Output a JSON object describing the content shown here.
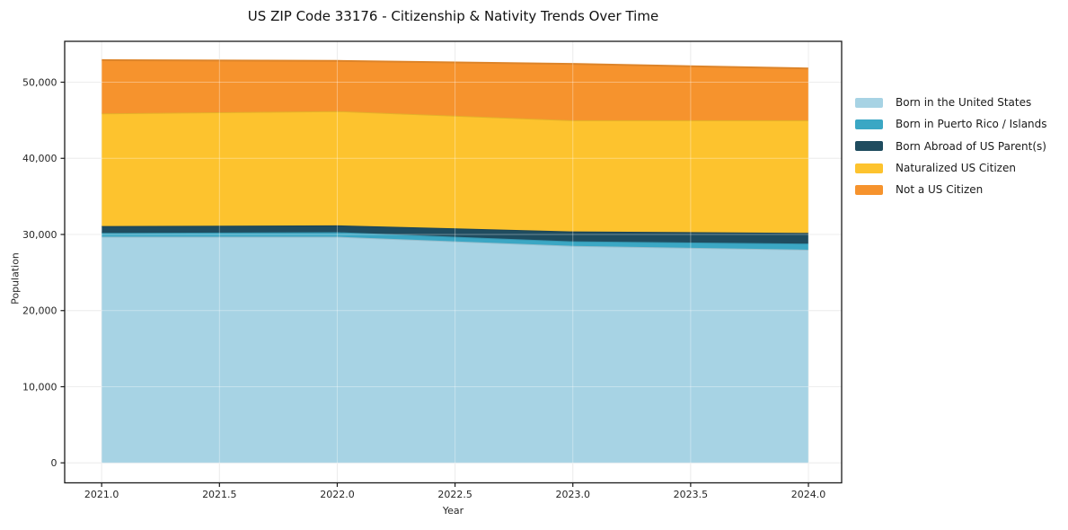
{
  "chart_data": {
    "type": "area",
    "stacked": true,
    "title": "US ZIP Code 33176 - Citizenship & Nativity Trends Over Time",
    "xlabel": "Year",
    "ylabel": "Population",
    "x": [
      2021,
      2022,
      2023,
      2024
    ],
    "series": [
      {
        "name": "Born in the United States",
        "color": "#a7d3e4",
        "values": [
          29700,
          29700,
          28500,
          28000
        ]
      },
      {
        "name": "Born in Puerto Rico / Islands",
        "color": "#3ba7c4",
        "values": [
          500,
          600,
          600,
          800
        ]
      },
      {
        "name": "Born Abroad of US Parent(s)",
        "color": "#1f4c5f",
        "values": [
          900,
          900,
          1300,
          1400
        ]
      },
      {
        "name": "Naturalized US Citizen",
        "color": "#fdc32e",
        "values": [
          14800,
          15000,
          14600,
          14800
        ]
      },
      {
        "name": "Not a US Citizen",
        "color": "#f6932d",
        "values": [
          7000,
          6600,
          7400,
          6800
        ]
      }
    ],
    "totals": [
      52900,
      52800,
      52400,
      51800
    ],
    "xlim": [
      2020.843,
      2024.141
    ],
    "ylim": [
      -2625,
      55370
    ],
    "xticks": {
      "values": [
        2021.0,
        2021.5,
        2022.0,
        2022.5,
        2023.0,
        2023.5,
        2024.0
      ],
      "labels": [
        "2021.0",
        "2021.5",
        "2022.0",
        "2022.5",
        "2023.0",
        "2023.5",
        "2024.0"
      ]
    },
    "yticks": {
      "values": [
        0,
        10000,
        20000,
        30000,
        40000,
        50000
      ],
      "labels": [
        "0",
        "10,000",
        "20,000",
        "30,000",
        "40,000",
        "50,000"
      ]
    },
    "grid": true,
    "legend_position": "right",
    "colors": {
      "spine": "#1a1a1a",
      "grid_under": "#e3e3e3",
      "grid_over": "rgba(255,255,255,0.35)",
      "background": "#ffffff"
    }
  }
}
